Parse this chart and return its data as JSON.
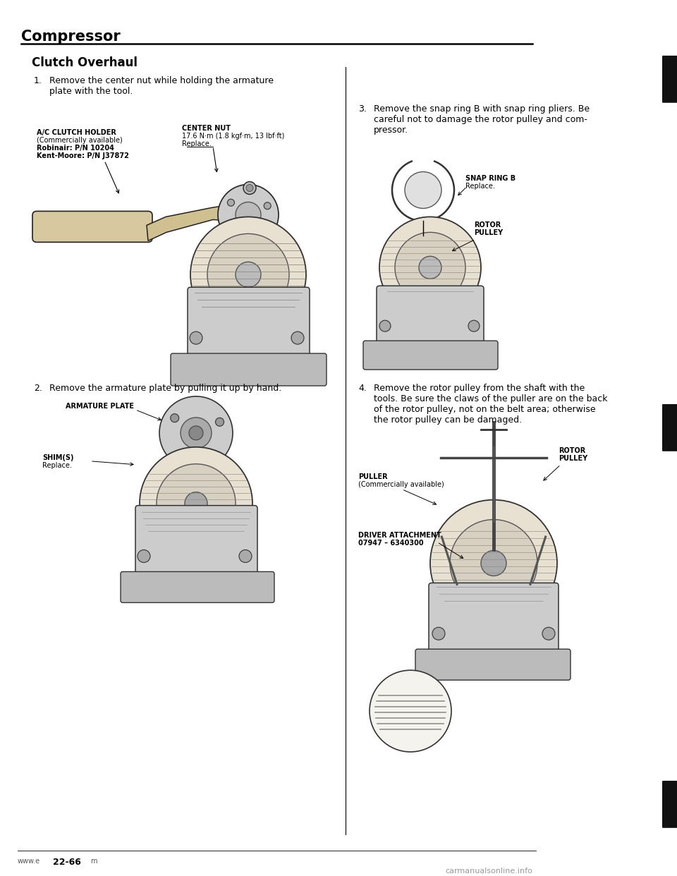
{
  "bg_color": "#ffffff",
  "title": "Compressor",
  "section_title": "Clutch Overhaul",
  "step1_text": "Remove the center nut while holding the armature\nplate with the tool.",
  "step2_text": "Remove the armature plate by pulling it up by hand.",
  "step3_text": "Remove the snap ring B with snap ring pliers. Be\ncareful not to damage the rotor pulley and com-\npressor.",
  "step4_text": "Remove the rotor pulley from the shaft with the\ntools. Be sure the claws of the puller are on the back\nof the rotor pulley, not on the belt area; otherwise\nthe rotor pulley can be damaged.",
  "label_center_nut_line1": "CENTER NUT",
  "label_center_nut_line2": "17.6 N·m (1.8 kgf·m, 13 lbf·ft)",
  "label_center_nut_line3": "Replace.",
  "label_clutch_holder_line1": "A/C CLUTCH HOLDER",
  "label_clutch_holder_line2": "(Commercially available)",
  "label_clutch_holder_line3": "Robinair: P/N 10204",
  "label_clutch_holder_line4": "Kent-Moore: P/N J37872",
  "label_armature_plate": "ARMATURE PLATE",
  "label_shim_line1": "SHIM(S)",
  "label_shim_line2": "Replace.",
  "label_snap_ring_line1": "SNAP RING B",
  "label_snap_ring_line2": "Replace.",
  "label_rotor_pulley1_line1": "ROTOR",
  "label_rotor_pulley1_line2": "PULLEY",
  "label_rotor_pulley2_line1": "ROTOR",
  "label_rotor_pulley2_line2": "PULLEY",
  "label_puller_line1": "PULLER",
  "label_puller_line2": "(Commercially available)",
  "label_driver_line1": "DRIVER ATTACHMENT",
  "label_driver_line2": "07947 – 6340300",
  "footer_left": "www.e",
  "footer_page": "22-66",
  "footer_right": "m",
  "page_watermark": "carmanualsonline.info",
  "text_color": "#000000",
  "line_color": "#000000",
  "divider_color": "#000000"
}
